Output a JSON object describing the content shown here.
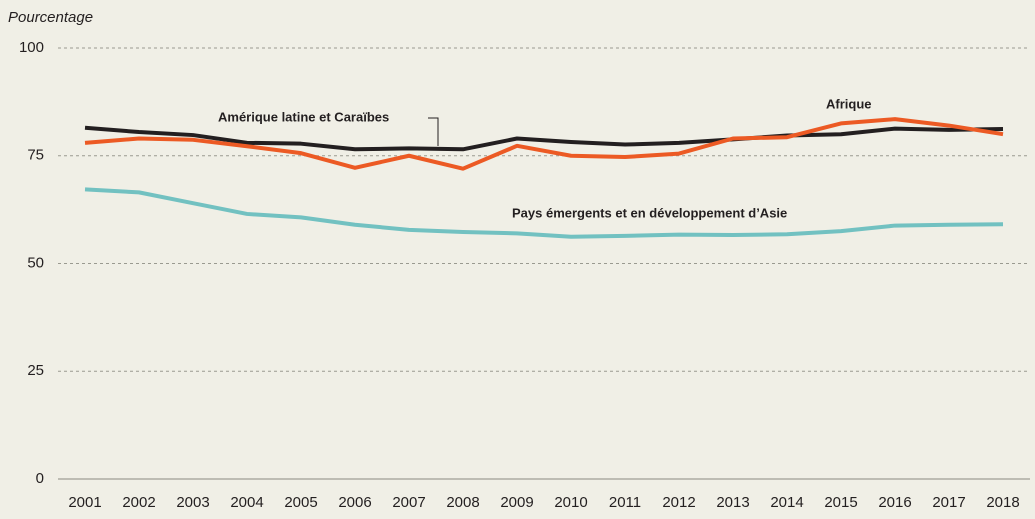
{
  "chart_data": {
    "type": "line",
    "y_label": "Pourcentage",
    "categories": [
      "2001",
      "2002",
      "2003",
      "2004",
      "2005",
      "2006",
      "2007",
      "2008",
      "2009",
      "2010",
      "2011",
      "2012",
      "2013",
      "2014",
      "2015",
      "2016",
      "2017",
      "2018"
    ],
    "series": [
      {
        "name": "Amérique latine et Caraïbes",
        "color": "#231f20",
        "values": [
          81.5,
          80.5,
          79.8,
          78,
          77.8,
          76.5,
          76.7,
          76.5,
          79,
          78.2,
          77.6,
          78,
          78.8,
          79.7,
          80,
          81.3,
          81,
          81.2
        ]
      },
      {
        "name": "Afrique",
        "color": "#ec5a24",
        "values": [
          78,
          79,
          78.7,
          77.2,
          75.6,
          72.2,
          75,
          72,
          77.3,
          75,
          74.7,
          75.5,
          79,
          79.3,
          82.5,
          83.5,
          82,
          80
        ]
      },
      {
        "name": "Pays émergents et en développement d’Asie",
        "color": "#72c1c1",
        "values": [
          67.2,
          66.5,
          64,
          61.5,
          60.7,
          59,
          57.8,
          57.3,
          57,
          56.2,
          56.4,
          56.7,
          56.6,
          56.8,
          57.5,
          58.8,
          59,
          59.1
        ]
      }
    ],
    "ylim": [
      0,
      100
    ],
    "yticks": [
      0,
      25,
      50,
      75,
      100
    ],
    "grid": true
  }
}
